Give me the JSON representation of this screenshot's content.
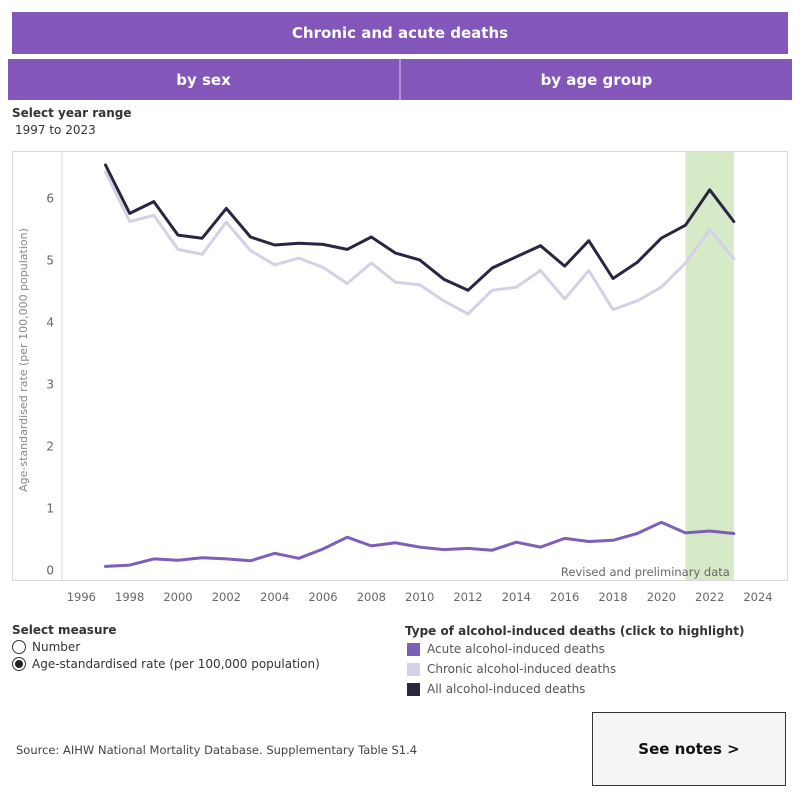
{
  "header": {
    "title": "Chronic and acute deaths"
  },
  "tabs": [
    {
      "label": "by sex"
    },
    {
      "label": "by age group"
    }
  ],
  "year_range": {
    "label": "Select year range",
    "value": "1997 to 2023"
  },
  "measure": {
    "title": "Select measure",
    "options": [
      {
        "label": "Number",
        "selected": false
      },
      {
        "label": "Age-standardised rate (per 100,000 population)",
        "selected": true
      }
    ]
  },
  "legend": {
    "title": "Type of alcohol-induced deaths (click to highlight)",
    "items": [
      {
        "label": "Acute alcohol-induced deaths",
        "color": "#7b5fb8"
      },
      {
        "label": "Chronic alcohol-induced deaths",
        "color": "#d4d1e6"
      },
      {
        "label": "All alcohol-induced deaths",
        "color": "#2a2541"
      }
    ]
  },
  "source": "Source: AIHW National Mortality Database. Supplementary Table S1.4",
  "notes_button": "See notes >",
  "chart_data": {
    "type": "line",
    "ylabel": "Age-standardised rate (per 100,000 population)",
    "xlabel": "",
    "xlim": [
      1995.2,
      2025.2
    ],
    "ylim": [
      -0.15,
      6.75
    ],
    "xticks": [
      1996,
      1998,
      2000,
      2002,
      2004,
      2006,
      2008,
      2010,
      2012,
      2014,
      2016,
      2018,
      2020,
      2022,
      2024
    ],
    "yticks": [
      0,
      1,
      2,
      3,
      4,
      5,
      6
    ],
    "grid": false,
    "highlight_band": {
      "x_start": 2021,
      "x_end": 2023,
      "label": "Revised and preliminary data",
      "color": "#d6eac8"
    },
    "x": [
      1997,
      1998,
      1999,
      2000,
      2001,
      2002,
      2003,
      2004,
      2005,
      2006,
      2007,
      2008,
      2009,
      2010,
      2011,
      2012,
      2013,
      2014,
      2015,
      2016,
      2017,
      2018,
      2019,
      2020,
      2021,
      2022,
      2023
    ],
    "series": [
      {
        "name": "Acute alcohol-induced deaths",
        "color": "#7b5fb8",
        "values": [
          0.07,
          0.09,
          0.19,
          0.17,
          0.21,
          0.19,
          0.16,
          0.28,
          0.2,
          0.35,
          0.54,
          0.4,
          0.45,
          0.38,
          0.34,
          0.36,
          0.33,
          0.46,
          0.38,
          0.52,
          0.47,
          0.49,
          0.6,
          0.78,
          0.61,
          0.64,
          0.6
        ]
      },
      {
        "name": "Chronic alcohol-induced deaths",
        "color": "#d4d1e6",
        "values": [
          6.43,
          5.63,
          5.73,
          5.18,
          5.1,
          5.62,
          5.16,
          4.93,
          5.04,
          4.89,
          4.63,
          4.96,
          4.65,
          4.61,
          4.35,
          4.14,
          4.52,
          4.57,
          4.84,
          4.38,
          4.84,
          4.21,
          4.35,
          4.57,
          4.96,
          5.5,
          5.03
        ]
      },
      {
        "name": "All alcohol-induced deaths",
        "color": "#2a2541",
        "values": [
          6.54,
          5.76,
          5.95,
          5.41,
          5.36,
          5.84,
          5.38,
          5.25,
          5.28,
          5.26,
          5.18,
          5.38,
          5.12,
          5.01,
          4.7,
          4.52,
          4.88,
          5.06,
          5.24,
          4.91,
          5.32,
          4.71,
          4.97,
          5.36,
          5.57,
          6.14,
          5.63
        ]
      }
    ]
  }
}
